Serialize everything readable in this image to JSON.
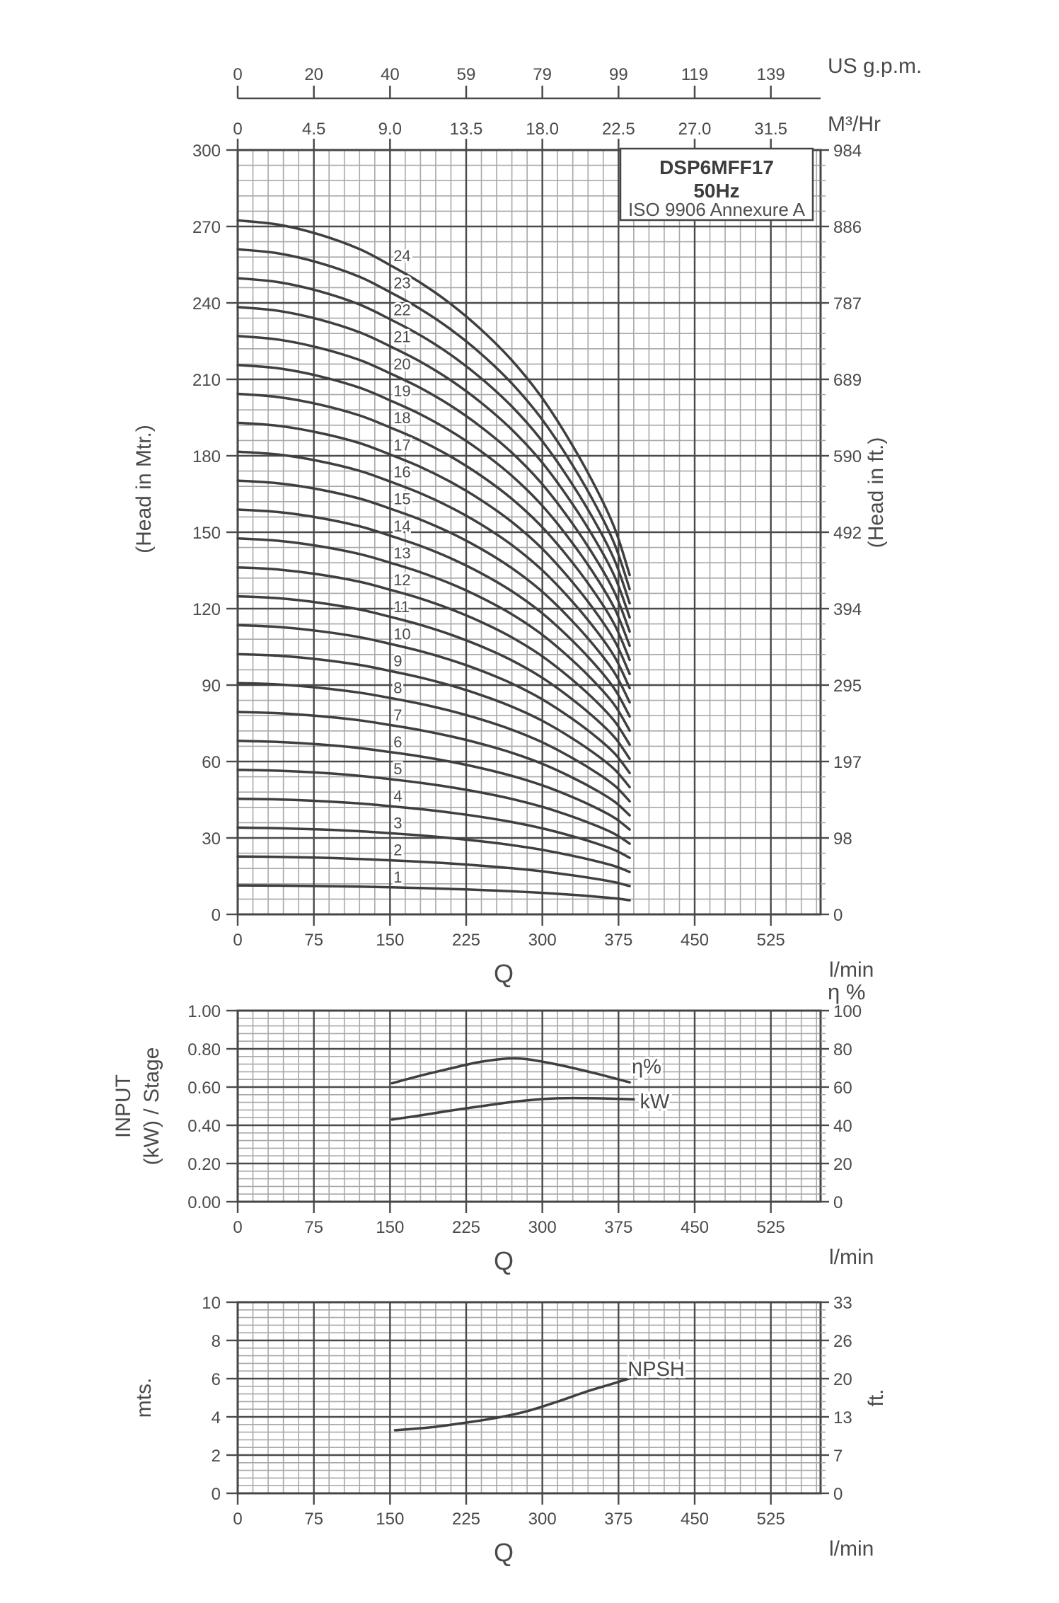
{
  "colors": {
    "background": "#ffffff",
    "text": "#4a4a4a",
    "grid_minor": "#a8a8a8",
    "grid_major": "#4a4a4a",
    "border": "#454545",
    "curve": "#3f3f3f"
  },
  "title_box": {
    "line1": "DSP6MFF17",
    "line2": "50Hz",
    "line3": "ISO 9906 Annexure A"
  },
  "units": {
    "usgpm": "US g.p.m.",
    "m3hr": "M³/Hr",
    "lmin": "l/min",
    "q": "Q",
    "head_m": "(Head in Mtr.)",
    "head_ft": "(Head in ft.)",
    "input1": "INPUT",
    "input2": "(kW) / Stage",
    "eta_pct": "η %",
    "mts": "mts.",
    "ft": "ft."
  },
  "chart_data": [
    {
      "id": "head",
      "type": "line",
      "title": "DSP6MFF17 50Hz ISO 9906 Annexure A",
      "x_axis": {
        "label": "Q",
        "unit": "l/min",
        "ticks": [
          0,
          75,
          150,
          225,
          300,
          375,
          450,
          525
        ],
        "minor_step": 15,
        "max": 574
      },
      "top_axis_usgpm": {
        "unit": "US g.p.m.",
        "ticks": [
          "0",
          "20",
          "40",
          "59",
          "79",
          "99",
          "119",
          "139"
        ]
      },
      "top_axis_m3hr": {
        "unit": "M³/Hr",
        "ticks": [
          "0",
          "4.5",
          "9.0",
          "13.5",
          "18.0",
          "22.5",
          "27.0",
          "31.5"
        ]
      },
      "y_left": {
        "title": "(Head in Mtr.)",
        "ticks": [
          "0",
          "30",
          "60",
          "90",
          "120",
          "150",
          "180",
          "210",
          "240",
          "270",
          "300"
        ],
        "minor_step": 6,
        "max": 300
      },
      "y_right": {
        "title": "(Head in ft.)",
        "ticks": [
          "0",
          "98",
          "197",
          "295",
          "394",
          "492",
          "590",
          "689",
          "787",
          "886",
          "984"
        ]
      },
      "stages": [
        1,
        2,
        3,
        4,
        5,
        6,
        7,
        8,
        9,
        10,
        11,
        12,
        13,
        14,
        15,
        16,
        17,
        18,
        19,
        20,
        21,
        22,
        23,
        24
      ],
      "stage_label_q": 152,
      "single_stage_curve": {
        "q_lmin": [
          0,
          40,
          80,
          120,
          152,
          180,
          210,
          240,
          270,
          300,
          330,
          355,
          372,
          386
        ],
        "head_m": [
          11.35,
          11.28,
          11.12,
          10.88,
          10.6,
          10.33,
          9.98,
          9.56,
          9.06,
          8.44,
          7.66,
          6.9,
          6.28,
          5.55
        ]
      }
    },
    {
      "id": "input",
      "type": "line",
      "x_axis": {
        "label": "Q",
        "unit": "l/min",
        "ticks": [
          0,
          75,
          150,
          225,
          300,
          375,
          450,
          525
        ],
        "minor_step": 15,
        "max": 574
      },
      "y_left": {
        "title1": "INPUT",
        "title2": "(kW) / Stage",
        "ticks": [
          "0.00",
          "0.20",
          "0.40",
          "0.60",
          "0.80",
          "1.00"
        ],
        "minor_step": 0.04,
        "max": 1.0
      },
      "y_right": {
        "header": "η %",
        "ticks": [
          "0",
          "20",
          "40",
          "60",
          "80",
          "100"
        ]
      },
      "series": [
        {
          "name": "efficiency",
          "label": "η%",
          "q": [
            152,
            180,
            210,
            235,
            255,
            270,
            285,
            305,
            330,
            355,
            386
          ],
          "values_pct": [
            62,
            66,
            69.8,
            72.8,
            74.4,
            75,
            74.6,
            72.8,
            70,
            66.8,
            62.5
          ],
          "label_q": 388,
          "label_value": 0.71
        },
        {
          "name": "power",
          "label": "kW",
          "q": [
            152,
            180,
            210,
            240,
            270,
            295,
            315,
            340,
            365,
            390
          ],
          "values_kw": [
            0.43,
            0.452,
            0.477,
            0.5,
            0.522,
            0.535,
            0.541,
            0.542,
            0.54,
            0.536
          ],
          "label_q": 396,
          "label_value": 0.522
        }
      ]
    },
    {
      "id": "npsh",
      "type": "line",
      "x_axis": {
        "label": "Q",
        "unit": "l/min",
        "ticks": [
          0,
          75,
          150,
          225,
          300,
          375,
          450,
          525
        ],
        "minor_step": 15,
        "max": 574
      },
      "y_left": {
        "title": "mts.",
        "ticks": [
          "0",
          "2",
          "4",
          "6",
          "8",
          "10"
        ],
        "minor_step": 0.4,
        "max": 10
      },
      "y_right": {
        "title": "ft.",
        "ticks": [
          "0",
          "7",
          "13",
          "20",
          "26",
          "33"
        ]
      },
      "series": [
        {
          "name": "npsh",
          "label": "NPSH",
          "q": [
            155,
            190,
            225,
            255,
            285,
            315,
            345,
            370,
            388
          ],
          "values_m": [
            3.3,
            3.45,
            3.7,
            3.95,
            4.3,
            4.8,
            5.35,
            5.75,
            6.05
          ],
          "label_q": 391,
          "label_value": 6.45
        }
      ]
    }
  ]
}
